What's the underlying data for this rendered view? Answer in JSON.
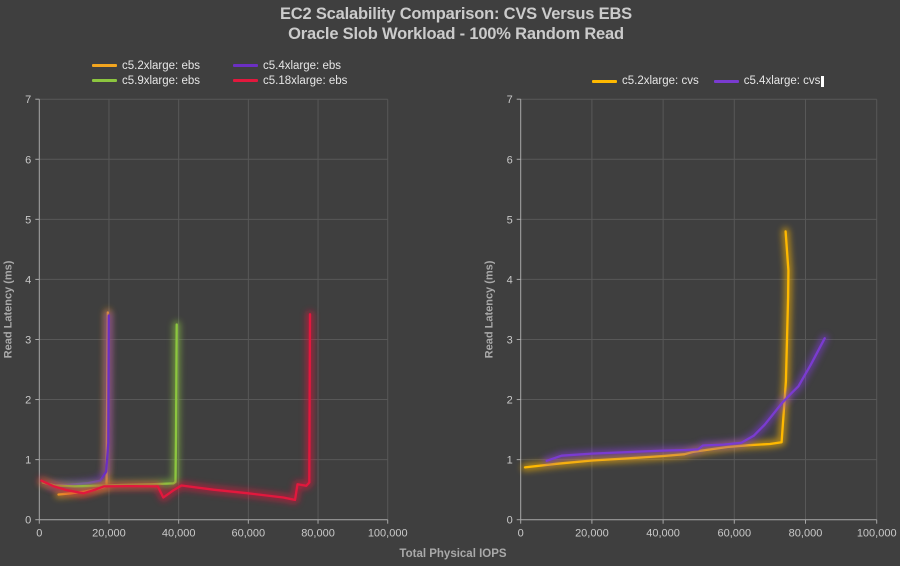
{
  "page": {
    "background": "#3F3F3F"
  },
  "title": {
    "line1": "EC2 Scalability Comparison: CVS Versus EBS",
    "line2": "Oracle Slob Workload - 100% Random Read"
  },
  "shared_x_axis_title": "Total Physical IOPS",
  "colors": {
    "background": "#3F3F3F",
    "gridline": "#585858",
    "axis_line": "#A8A8A8",
    "tick_label": "#C9C9C9",
    "axis_title": "#A9A9A9",
    "title_text": "#CBCBCB",
    "legend_text": "#E6E6E6",
    "cursor": "#FFFFFF"
  },
  "chart_data": [
    {
      "type": "line",
      "name": "ebs-chart",
      "xlabel": "Total Physical IOPS",
      "ylabel": "Read Latency (ms)",
      "xlim": [
        0,
        100000
      ],
      "ylim": [
        0,
        7
      ],
      "grid": true,
      "x_ticks": [
        0,
        20000,
        40000,
        60000,
        80000,
        100000
      ],
      "x_tick_labels": [
        "0",
        "20,000",
        "40,000",
        "60,000",
        "80,000",
        "100,000"
      ],
      "y_ticks": [
        0,
        1,
        2,
        3,
        4,
        5,
        6,
        7
      ],
      "y_tick_labels": [
        "0",
        "1",
        "2",
        "3",
        "4",
        "5",
        "6",
        "7"
      ],
      "legend": {
        "layout": "grid-2col",
        "position": "top-left",
        "cursor": false
      },
      "series": [
        {
          "name": "c5.2xlarge: ebs",
          "color": "#F2A51F",
          "points": [
            [
              5500,
              0.42
            ],
            [
              9000,
              0.44
            ],
            [
              13000,
              0.47
            ],
            [
              16500,
              0.51
            ],
            [
              19300,
              0.56
            ],
            [
              19650,
              3.45
            ]
          ]
        },
        {
          "name": "c5.4xlarge: ebs",
          "color": "#6B2FC3",
          "points": [
            [
              3500,
              0.57
            ],
            [
              9000,
              0.585
            ],
            [
              14000,
              0.61
            ],
            [
              17500,
              0.65
            ],
            [
              19200,
              0.8
            ],
            [
              19800,
              1.28
            ],
            [
              19950,
              3.4
            ]
          ]
        },
        {
          "name": "c5.9xlarge: ebs",
          "color": "#8CC63F",
          "points": [
            [
              1000,
              0.62
            ],
            [
              4500,
              0.57
            ],
            [
              10000,
              0.555
            ],
            [
              16000,
              0.565
            ],
            [
              24000,
              0.58
            ],
            [
              32000,
              0.59
            ],
            [
              38500,
              0.605
            ],
            [
              39100,
              0.63
            ],
            [
              39250,
              1.4
            ],
            [
              39450,
              3.25
            ]
          ]
        },
        {
          "name": "c5.18xlarge: ebs",
          "color": "#E2183D",
          "points": [
            [
              600,
              0.65
            ],
            [
              4000,
              0.56
            ],
            [
              8000,
              0.49
            ],
            [
              12700,
              0.44
            ],
            [
              16000,
              0.5
            ],
            [
              18500,
              0.555
            ],
            [
              26000,
              0.56
            ],
            [
              34000,
              0.555
            ],
            [
              35600,
              0.37
            ],
            [
              38500,
              0.49
            ],
            [
              40800,
              0.57
            ],
            [
              50000,
              0.5
            ],
            [
              60000,
              0.44
            ],
            [
              70000,
              0.37
            ],
            [
              73400,
              0.33
            ],
            [
              74100,
              0.59
            ],
            [
              76600,
              0.565
            ],
            [
              77500,
              0.62
            ],
            [
              77700,
              3.42
            ]
          ]
        }
      ]
    },
    {
      "type": "line",
      "name": "cvs-chart",
      "xlabel": "Total Physical IOPS",
      "ylabel": "Read Latency (ms)",
      "xlim": [
        0,
        100000
      ],
      "ylim": [
        0,
        7
      ],
      "grid": true,
      "x_ticks": [
        0,
        20000,
        40000,
        60000,
        80000,
        100000
      ],
      "x_tick_labels": [
        "0",
        "20,000",
        "40,000",
        "60,000",
        "80,000",
        "100,000"
      ],
      "y_ticks": [
        0,
        1,
        2,
        3,
        4,
        5,
        6,
        7
      ],
      "y_tick_labels": [
        "0",
        "1",
        "2",
        "3",
        "4",
        "5",
        "6",
        "7"
      ],
      "legend": {
        "layout": "row",
        "position": "top-center",
        "cursor": true
      },
      "series": [
        {
          "name": "c5.2xlarge: cvs",
          "color": "#FFB900",
          "points": [
            [
              1200,
              0.87
            ],
            [
              10000,
              0.93
            ],
            [
              20000,
              0.985
            ],
            [
              30000,
              1.02
            ],
            [
              40000,
              1.06
            ],
            [
              46000,
              1.09
            ],
            [
              48500,
              1.13
            ],
            [
              52000,
              1.16
            ],
            [
              58000,
              1.21
            ],
            [
              64000,
              1.24
            ],
            [
              70000,
              1.26
            ],
            [
              73300,
              1.29
            ],
            [
              74500,
              2.3
            ],
            [
              75100,
              3.7
            ],
            [
              75200,
              4.15
            ],
            [
              74400,
              4.8
            ]
          ]
        },
        {
          "name": "c5.4xlarge: cvs",
          "color": "#7A3BD0",
          "points": [
            [
              7300,
              0.98
            ],
            [
              11500,
              1.065
            ],
            [
              20000,
              1.1
            ],
            [
              30000,
              1.125
            ],
            [
              40000,
              1.15
            ],
            [
              46500,
              1.16
            ],
            [
              49800,
              1.17
            ],
            [
              51200,
              1.235
            ],
            [
              57000,
              1.25
            ],
            [
              62000,
              1.28
            ],
            [
              65500,
              1.4
            ],
            [
              68500,
              1.58
            ],
            [
              71500,
              1.8
            ],
            [
              73500,
              1.95
            ],
            [
              76300,
              2.12
            ],
            [
              78000,
              2.22
            ],
            [
              81500,
              2.58
            ],
            [
              85400,
              3.02
            ]
          ]
        }
      ]
    }
  ]
}
